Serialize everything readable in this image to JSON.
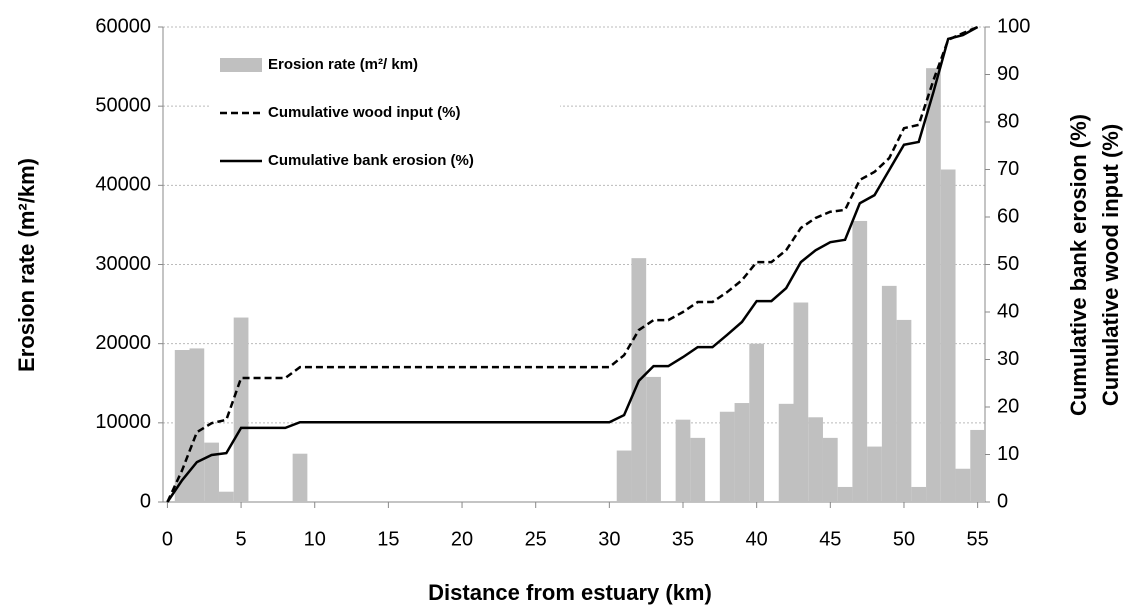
{
  "chart_data": {
    "type": "bar",
    "xlabel": "Distance from estuary (km)",
    "ylabel": "Erosion rate (m²/km)",
    "y2label": [
      "Cumulative bank erosion (%)",
      "Cumulative wood input (%)"
    ],
    "xlim": [
      -0.3,
      55.5
    ],
    "xticks": [
      0,
      5,
      10,
      15,
      20,
      25,
      30,
      35,
      40,
      45,
      50,
      55
    ],
    "ylim": [
      0,
      60000
    ],
    "yticks": [
      0,
      10000,
      20000,
      30000,
      40000,
      50000,
      60000
    ],
    "y2lim": [
      0,
      100
    ],
    "y2ticks": [
      0,
      10,
      20,
      30,
      40,
      50,
      60,
      70,
      80,
      90,
      100
    ],
    "grid": true,
    "legend": "upper left",
    "series": [
      {
        "name": "Erosion rate (m²/ km)",
        "type": "bar",
        "color": "#c0c0c0",
        "axis": "y",
        "x": [
          1,
          2,
          3,
          4,
          5,
          9,
          31,
          32,
          33,
          35,
          36,
          38,
          39,
          40,
          42,
          43,
          44,
          45,
          46,
          47,
          48,
          49,
          50,
          51,
          52,
          53,
          54,
          55
        ],
        "values": [
          19200,
          19400,
          7500,
          1300,
          23300,
          6100,
          6500,
          30800,
          15800,
          10400,
          8100,
          11400,
          12500,
          20000,
          12400,
          25200,
          10700,
          8100,
          1900,
          35500,
          7000,
          27300,
          23000,
          1900,
          54800,
          42000,
          4200,
          9100
        ]
      },
      {
        "name": "Cumulative wood input (%)",
        "type": "line",
        "color": "#000000",
        "dashed": true,
        "axis": "y2",
        "x": [
          0,
          1,
          2,
          3,
          4,
          5,
          8,
          9,
          30,
          31,
          32,
          33,
          34,
          35,
          36,
          37,
          38,
          39,
          40,
          41,
          42,
          43,
          44,
          45,
          46,
          47,
          48,
          49,
          50,
          51,
          52,
          53,
          54,
          55
        ],
        "values": [
          0,
          6.7,
          14.7,
          16.6,
          17.3,
          26.1,
          26.1,
          28.4,
          28.4,
          30.9,
          36.2,
          38.3,
          38.3,
          40,
          42.1,
          42.1,
          44.2,
          46.7,
          50.5,
          50.5,
          53,
          57.7,
          59.8,
          61.1,
          61.5,
          67.8,
          69.5,
          72.4,
          78.7,
          79.4,
          88.8,
          97.3,
          98.7,
          100
        ]
      },
      {
        "name": "Cumulative bank erosion (%)",
        "type": "line",
        "color": "#000000",
        "dashed": false,
        "axis": "y2",
        "x": [
          0,
          1,
          2,
          3,
          4,
          5,
          8,
          9,
          30,
          31,
          32,
          33,
          34,
          35,
          36,
          37,
          38,
          39,
          40,
          41,
          42,
          43,
          44,
          45,
          46,
          47,
          48,
          49,
          50,
          51,
          52,
          53,
          54,
          55
        ],
        "values": [
          0,
          4.6,
          8.4,
          9.9,
          10.3,
          15.6,
          15.6,
          16.8,
          16.8,
          18.3,
          25.5,
          28.6,
          28.6,
          30.5,
          32.6,
          32.6,
          35.2,
          37.9,
          42.3,
          42.3,
          45,
          50.5,
          53,
          54.7,
          55.2,
          62.9,
          64.6,
          69.9,
          75.2,
          75.8,
          86.3,
          97.5,
          98.3,
          100
        ]
      }
    ]
  }
}
